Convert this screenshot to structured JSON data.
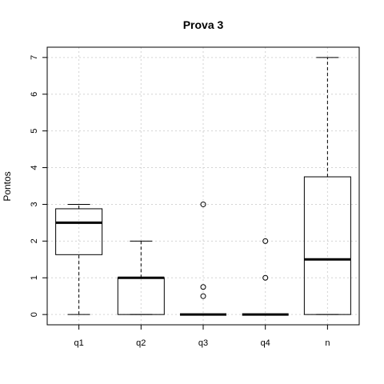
{
  "chart_data": {
    "type": "boxplot",
    "title": "Prova 3",
    "xlabel": "",
    "ylabel": "Pontos",
    "ylim": [
      -0.28,
      7.28
    ],
    "yticks": [
      0,
      1,
      2,
      3,
      4,
      5,
      6,
      7
    ],
    "grid": true,
    "categories": [
      "q1",
      "q2",
      "q3",
      "q4",
      "n"
    ],
    "boxes": [
      {
        "label": "q1",
        "whisker_low": 0,
        "q1": 1.63,
        "median": 2.5,
        "q3": 2.88,
        "whisker_high": 3,
        "outliers": []
      },
      {
        "label": "q2",
        "whisker_low": 0,
        "q1": 0,
        "median": 1,
        "q3": 1,
        "whisker_high": 2,
        "outliers": []
      },
      {
        "label": "q3",
        "whisker_low": 0,
        "q1": 0,
        "median": 0,
        "q3": 0,
        "whisker_high": 0,
        "outliers": [
          0.5,
          0.75,
          3
        ]
      },
      {
        "label": "q4",
        "whisker_low": 0,
        "q1": 0,
        "median": 0,
        "q3": 0,
        "whisker_high": 0,
        "outliers": [
          1,
          2
        ]
      },
      {
        "label": "n",
        "whisker_low": 0,
        "q1": 0,
        "median": 1.5,
        "q3": 3.75,
        "whisker_high": 7,
        "outliers": []
      }
    ]
  }
}
